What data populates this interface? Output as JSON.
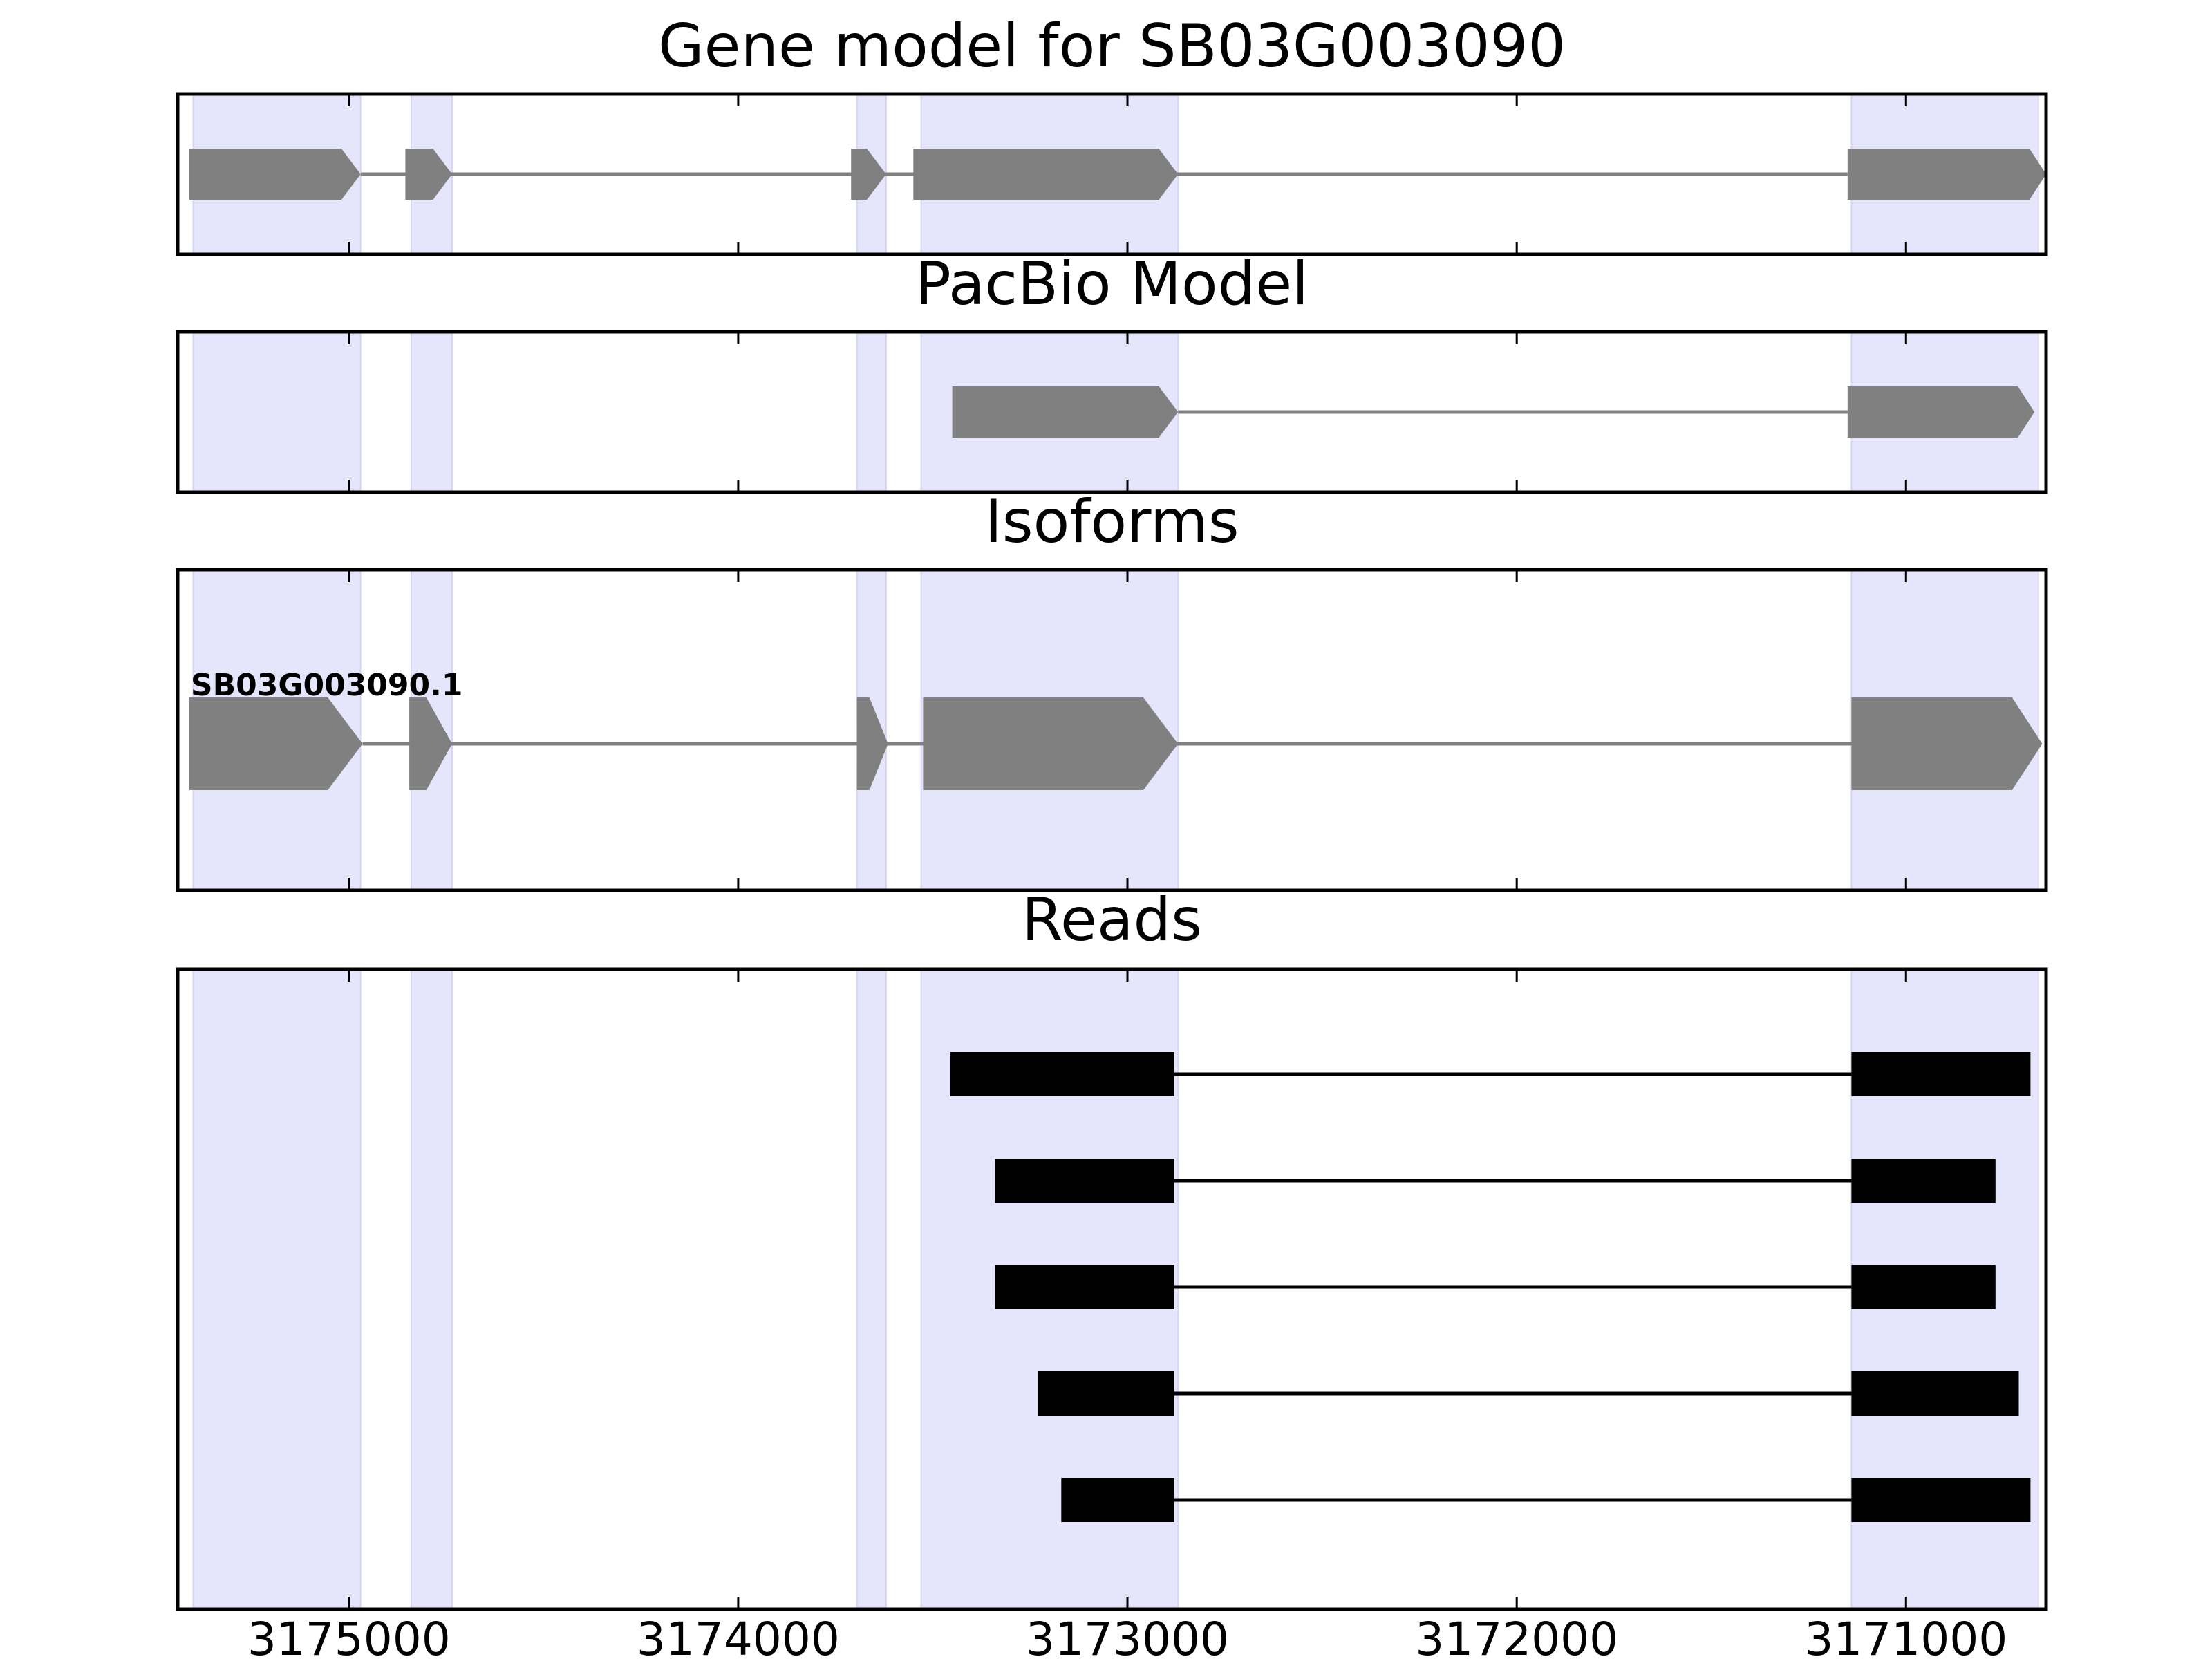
{
  "chart_data": {
    "type": "gene-track",
    "x_axis": {
      "reversed": true,
      "xlim": [
        3175440,
        3170640
      ],
      "ticks": [
        3175000,
        3174000,
        3173000,
        3172000,
        3171000
      ],
      "tick_labels": [
        "3175000",
        "3174000",
        "3173000",
        "3172000",
        "3171000"
      ]
    },
    "highlight_regions": [
      [
        3175400,
        3174970
      ],
      [
        3174840,
        3174735
      ],
      [
        3173695,
        3173620
      ],
      [
        3173530,
        3172870
      ],
      [
        3171140,
        3170660
      ]
    ],
    "colors": {
      "highlight": "#e5e5fc",
      "feature": "#808080",
      "read": "#000000",
      "frame": "#000000"
    },
    "panels": [
      {
        "title": "Gene model for SB03G003090",
        "features": [
          {
            "label": "",
            "strand": "-",
            "exons": [
              [
                3175410,
                3174970
              ],
              [
                3174855,
                3174735
              ],
              [
                3173710,
                3173620
              ],
              [
                3173550,
                3172870
              ],
              [
                3171150,
                3170640
              ]
            ]
          }
        ]
      },
      {
        "title": "PacBio Model",
        "features": [
          {
            "label": "",
            "strand": "-",
            "exons": [
              [
                3173450,
                3172870
              ],
              [
                3171150,
                3170670
              ]
            ]
          }
        ]
      },
      {
        "title": "Isoforms",
        "features": [
          {
            "label": "SB03G003090.1",
            "strand": "-",
            "exons": [
              [
                3175410,
                3174965
              ],
              [
                3174845,
                3174735
              ],
              [
                3173695,
                3173615
              ],
              [
                3173525,
                3172870
              ],
              [
                3171140,
                3170650
              ]
            ]
          }
        ]
      },
      {
        "title": "Reads",
        "reads": [
          {
            "exons": [
              [
                3173455,
                3172880
              ],
              [
                3171140,
                3170680
              ]
            ]
          },
          {
            "exons": [
              [
                3173340,
                3172880
              ],
              [
                3171140,
                3170770
              ]
            ]
          },
          {
            "exons": [
              [
                3173340,
                3172880
              ],
              [
                3171140,
                3170770
              ]
            ]
          },
          {
            "exons": [
              [
                3173230,
                3172880
              ],
              [
                3171140,
                3170710
              ]
            ]
          },
          {
            "exons": [
              [
                3173170,
                3172880
              ],
              [
                3171140,
                3170680
              ]
            ]
          }
        ]
      }
    ]
  }
}
